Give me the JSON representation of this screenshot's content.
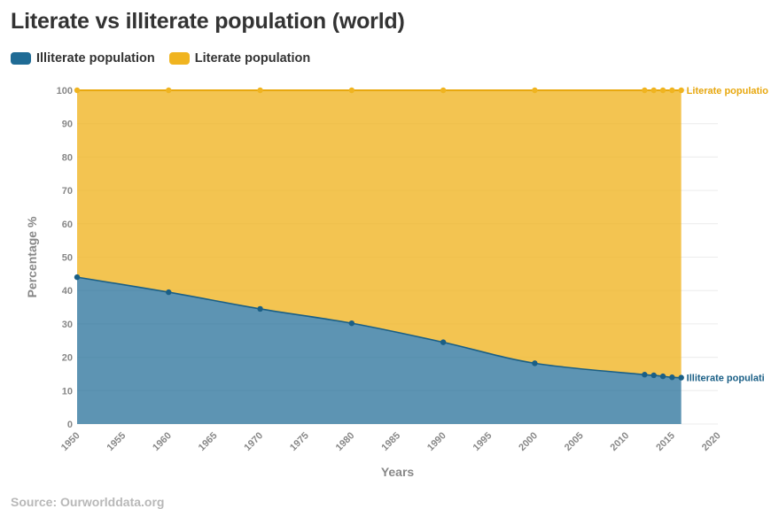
{
  "title": "Literate vs illiterate population (world)",
  "source": "Source: Ourworlddata.org",
  "colors": {
    "illiterate": "#1f6b95",
    "literate": "#f0b420"
  },
  "chart_data": {
    "type": "area",
    "stacked": true,
    "xlabel": "Years",
    "ylabel": "Percentage %",
    "xlim": [
      1950,
      2020
    ],
    "ylim": [
      0,
      100
    ],
    "xticks": [
      1950,
      1955,
      1960,
      1965,
      1970,
      1975,
      1980,
      1985,
      1990,
      1995,
      2000,
      2005,
      2010,
      2015,
      2020
    ],
    "yticks": [
      0,
      10,
      20,
      30,
      40,
      50,
      60,
      70,
      80,
      90,
      100
    ],
    "grid": true,
    "legend_position": "top-left",
    "x": [
      1950,
      1960,
      1970,
      1980,
      1990,
      2000,
      2012,
      2013,
      2014,
      2015,
      2016
    ],
    "series": [
      {
        "name": "Illiterate population",
        "end_label": "Illiterate populati",
        "values": [
          44.0,
          39.5,
          34.5,
          30.2,
          24.5,
          18.2,
          14.8,
          14.6,
          14.3,
          14.0,
          13.9
        ]
      },
      {
        "name": "Literate population",
        "end_label": "Literate populatio",
        "values": [
          56.0,
          60.5,
          65.5,
          69.8,
          75.5,
          81.8,
          85.2,
          85.4,
          85.7,
          86.0,
          86.1
        ]
      }
    ]
  }
}
